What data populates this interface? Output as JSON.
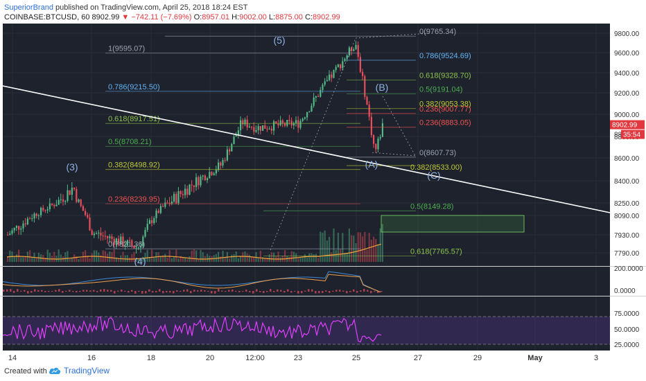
{
  "header": {
    "author": "SuperiorBrand",
    "published_text": "published on TradingView.com, April 25, 2018 18:24 EST",
    "symbol": "COINBASE:BTCUSD, 60",
    "last": "8902.99",
    "change": "−742.11 (−7.69%)",
    "ohlc": [
      {
        "k": "O:",
        "v": "8957.01"
      },
      {
        "k": "H:",
        "v": "9002.00"
      },
      {
        "k": "L:",
        "v": "8875.00"
      },
      {
        "k": "C:",
        "v": "8902.99"
      }
    ]
  },
  "footer": {
    "created_with": "Created with",
    "brand": "TradingView"
  },
  "colors": {
    "up": "#53b987",
    "down": "#eb4d5c",
    "volume_ma": "#f2a33a",
    "trendline": "#ffffff",
    "rsi": "#e040fb",
    "fib_upper": "#9aa4b2",
    "fib_786": "#64b5f6",
    "fib_618": "#8bc34a",
    "fib_5": "#4caf50",
    "fib_382": "#c0ca33",
    "fib_236": "#ef5350",
    "wave_label": "#8fb3e6"
  },
  "chart_data": {
    "type": "candlestick",
    "price_axis": {
      "ticks": [
        "9800.00",
        "9600.00",
        "9400.00",
        "9200.00",
        "9000.00",
        "8800.00",
        "8600.00",
        "8400.00",
        "8250.00",
        "8090.00",
        "7930.00",
        "7790.00"
      ],
      "last_price_label": "8902.99",
      "countdown_label": "35:54",
      "partial_label": "88"
    },
    "time_axis": [
      "14",
      "16",
      "18",
      "20",
      "12:00",
      "23",
      "25",
      "27",
      "29",
      "May",
      "3"
    ],
    "indicator1_axis": [
      "200.0000",
      "0.0000"
    ],
    "rsi_axis": [
      "75.0000",
      "50.0000",
      "25.0000"
    ],
    "approx_price_path": [
      {
        "date": "Apr 13",
        "price": 7930
      },
      {
        "date": "Apr 15",
        "price": 8360
      },
      {
        "date": "Apr 16",
        "price": 7950
      },
      {
        "date": "Apr 17",
        "price": 7830
      },
      {
        "date": "Apr 18",
        "price": 8060
      },
      {
        "date": "Apr 19",
        "price": 8230
      },
      {
        "date": "Apr 20",
        "price": 8540
      },
      {
        "date": "Apr 21",
        "price": 8930
      },
      {
        "date": "Apr 22",
        "price": 8880
      },
      {
        "date": "Apr 23",
        "price": 8920
      },
      {
        "date": "Apr 24",
        "price": 9700
      },
      {
        "date": "Apr 25",
        "price": 8650
      },
      {
        "date": "Apr 25 18:24",
        "price": 8902.99
      }
    ],
    "fib_left": [
      {
        "label": "1(9595.07)",
        "cls": "upper"
      },
      {
        "label": "0.786(9215.50)",
        "cls": "786"
      },
      {
        "label": "0.618(8917.51)",
        "cls": "618"
      },
      {
        "label": "0.5(8708.21)",
        "cls": "5"
      },
      {
        "label": "0.382(8498.92)",
        "cls": "382"
      },
      {
        "label": "0.236(8239.95)",
        "cls": "236"
      },
      {
        "label": "0(7821.36)",
        "cls": "upper"
      }
    ],
    "fib_right_upper": [
      {
        "label": "0(9765.34)",
        "cls": "upper"
      },
      {
        "label": "0.786(9524.69)",
        "cls": "786"
      },
      {
        "label": "0.618(9328.70)",
        "cls": "618"
      },
      {
        "label": "0.5(9191.04)",
        "cls": "5"
      },
      {
        "label": "0.382(9053.38)",
        "cls": "382"
      },
      {
        "label": "0.236(9007.77)",
        "cls": "236"
      },
      {
        "label": "0.236(8883.05)",
        "cls": "236"
      },
      {
        "label": "0(8607.73)",
        "cls": "upper"
      },
      {
        "label": "0.382(8533.00)",
        "cls": "382"
      }
    ],
    "fib_right_lower": [
      {
        "label": "0.5(8149.28)",
        "cls": "5"
      },
      {
        "label": "0.618(7765.57)",
        "cls": "618"
      }
    ],
    "wave_labels": [
      "(3)",
      "(4)",
      "(5)",
      "(A)",
      "(B)",
      "(C)"
    ]
  }
}
